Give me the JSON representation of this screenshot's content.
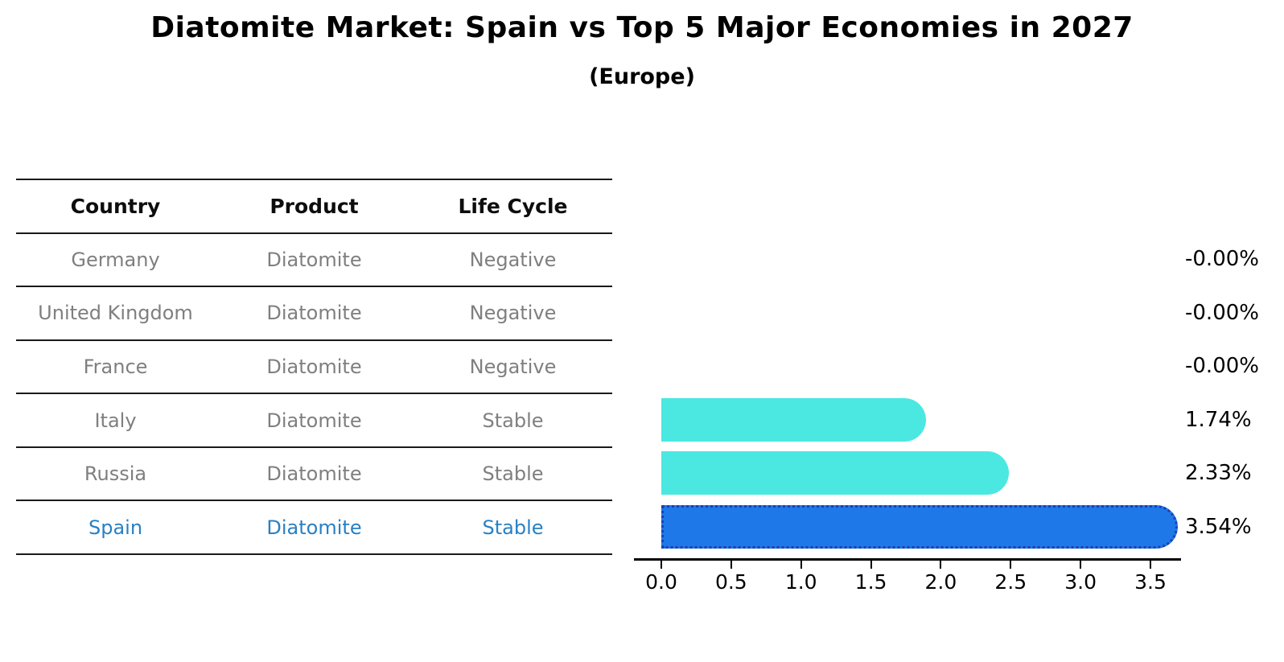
{
  "title": "Diatomite Market: Spain vs Top 5 Major Economies in 2027",
  "subtitle": "(Europe)",
  "table": {
    "headers": [
      "Country",
      "Product",
      "Life Cycle"
    ],
    "rows": [
      {
        "country": "Germany",
        "product": "Diatomite",
        "life_cycle": "Negative",
        "highlight": false
      },
      {
        "country": "United Kingdom",
        "product": "Diatomite",
        "life_cycle": "Negative",
        "highlight": false
      },
      {
        "country": "France",
        "product": "Diatomite",
        "life_cycle": "Negative",
        "highlight": false
      },
      {
        "country": "Italy",
        "product": "Diatomite",
        "life_cycle": "Stable",
        "highlight": false
      },
      {
        "country": "Russia",
        "product": "Diatomite",
        "life_cycle": "Stable",
        "highlight": false
      },
      {
        "country": "Spain",
        "product": "Diatomite",
        "life_cycle": "Stable",
        "highlight": true
      }
    ]
  },
  "chart_data": {
    "type": "bar",
    "orientation": "horizontal",
    "title": "Diatomite Market: Spain vs Top 5 Major Economies in 2027",
    "subtitle": "(Europe)",
    "categories": [
      "Germany",
      "United Kingdom",
      "France",
      "Italy",
      "Russia",
      "Spain"
    ],
    "values": [
      -0.0,
      -0.0,
      -0.0,
      1.74,
      2.33,
      3.54
    ],
    "value_labels": [
      "-0.00%",
      "-0.00%",
      "-0.00%",
      "1.74%",
      "2.33%",
      "3.54%"
    ],
    "x_ticks": [
      "0.0",
      "0.5",
      "1.0",
      "1.5",
      "2.0",
      "2.5",
      "3.0",
      "3.5"
    ],
    "xlim": [
      0.0,
      3.72
    ],
    "grid": false,
    "legend": "none",
    "highlight_index": 5,
    "colors": {
      "bar_default": "#4BE8E1",
      "bar_highlight": "#1E78E8",
      "highlight_border": "#1D40B5",
      "text": "#000000",
      "table_text": "#7f7f7f",
      "highlight_text": "#2980C4"
    }
  }
}
